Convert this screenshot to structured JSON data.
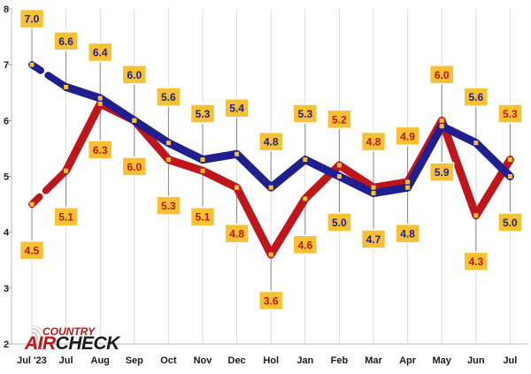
{
  "chart_data": {
    "type": "line",
    "categories": [
      "Jul '23",
      "Jul",
      "Aug",
      "Sep",
      "Oct",
      "Nov",
      "Dec",
      "Hol",
      "Jan",
      "Feb",
      "Mar",
      "Apr",
      "May",
      "Jun",
      "Jul"
    ],
    "ylim": [
      2,
      8
    ],
    "yticks": [
      2,
      3,
      4,
      5,
      6,
      7,
      8
    ],
    "grid": "vertical",
    "legend": "none",
    "series": [
      {
        "color": "#c0151b",
        "values": [
          4.5,
          5.1,
          6.3,
          6.0,
          5.3,
          5.1,
          4.8,
          3.6,
          4.6,
          5.2,
          4.8,
          4.9,
          6.0,
          4.3,
          5.3
        ],
        "labels": [
          "4.5",
          "5.1",
          "6.3",
          "6.0",
          "5.3",
          "5.1",
          "4.8",
          "3.6",
          "4.6",
          "5.2",
          "4.8",
          "4.9",
          "6.0",
          "4.3",
          "5.3"
        ],
        "label_positions": [
          "below",
          "below",
          "below",
          "below",
          "below",
          "below",
          "below",
          "below",
          "below",
          "above",
          "above",
          "above",
          "above",
          "below",
          "above"
        ]
      },
      {
        "color": "#1f1f8f",
        "values": [
          7.0,
          6.6,
          6.4,
          6.0,
          5.6,
          5.3,
          5.4,
          4.8,
          5.3,
          5.0,
          4.7,
          4.8,
          5.9,
          5.6,
          5.0
        ],
        "labels": [
          "7.0",
          "6.6",
          "6.4",
          "6.0",
          "5.6",
          "5.3",
          "5.4",
          "4.8",
          "5.3",
          "5.0",
          "4.7",
          "4.8",
          "5.9",
          "5.6",
          "5.0"
        ],
        "label_positions": [
          "above",
          "above",
          "above",
          "above",
          "above",
          "above",
          "above",
          "above",
          "above",
          "below",
          "below",
          "below",
          "below",
          "above",
          "below"
        ]
      }
    ]
  },
  "logo": {
    "top_word": "COUNTRY",
    "main_word_a": "AIR",
    "main_word_b": "CHECK"
  },
  "colors": {
    "label_fill": "#f6c233",
    "label_border": "#ffffff",
    "gridline": "#dcdcdc",
    "marker": "#f6c233"
  }
}
